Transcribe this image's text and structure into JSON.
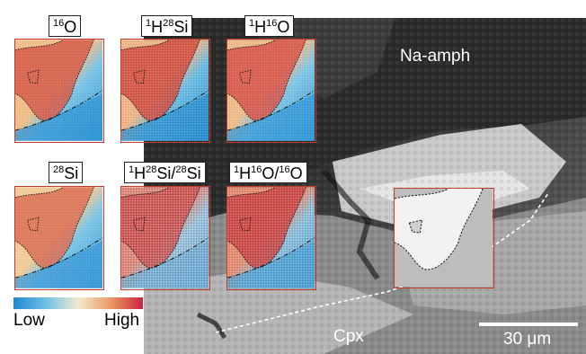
{
  "tiles": [
    {
      "label_html": "<sup>16</sup>O",
      "map": "o16"
    },
    {
      "label_html": "<sup>1</sup>H<sup>28</sup>Si",
      "map": "h28si"
    },
    {
      "label_html": "<sup>1</sup>H<sup>16</sup>O",
      "map": "h16o"
    },
    {
      "label_html": "<sup>28</sup>Si",
      "map": "si28"
    },
    {
      "label_html": "<sup>1</sup>H<sup>28</sup>Si/<sup>28</sup>Si",
      "map": "ratio_si"
    },
    {
      "label_html": "<sup>1</sup>H<sup>16</sup>O/<sup>16</sup>O",
      "map": "ratio_o"
    }
  ],
  "regions": {
    "upper": "Na-amph",
    "lower": "Cpx"
  },
  "colorbar": {
    "low": "Low",
    "high": "High",
    "colors": [
      "#1f88d3",
      "#6fc0e6",
      "#f2ead0",
      "#eb9a63",
      "#c9223d"
    ]
  },
  "scale": {
    "label": "30 μm"
  },
  "colors": {
    "frame": "#c0392b",
    "boundary_line": "#ffffff"
  }
}
